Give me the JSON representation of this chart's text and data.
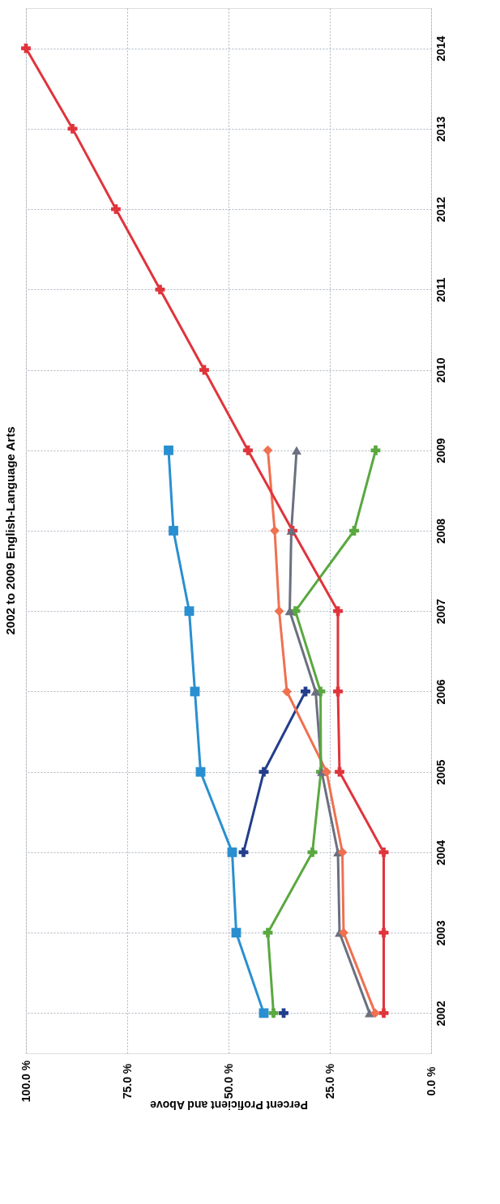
{
  "chart_data": {
    "type": "line",
    "orientation": "horizontal",
    "title": "2002 to 2009 English-Language Arts",
    "xlabel": "Percent Proficient and Above",
    "categories": [
      "2014",
      "2013",
      "2012",
      "2011",
      "2010",
      "2009",
      "2008",
      "2007",
      "2006",
      "2005",
      "2004",
      "2003",
      "2002"
    ],
    "series": [
      {
        "color": "#2a8fd0",
        "marker": "square",
        "values": [
          null,
          null,
          null,
          null,
          null,
          64.8,
          63.6,
          59.7,
          58.3,
          56.9,
          49.1,
          48.1,
          41.3
        ]
      },
      {
        "color": "#233e8b",
        "marker": "cross",
        "values": [
          null,
          null,
          null,
          null,
          null,
          null,
          null,
          null,
          31.0,
          41.3,
          46.3,
          null,
          36.4
        ]
      },
      {
        "color": "#f07050",
        "marker": "diamond",
        "values": [
          null,
          null,
          null,
          null,
          null,
          40.3,
          38.6,
          37.5,
          35.6,
          25.8,
          21.9,
          21.6,
          13.8
        ]
      },
      {
        "color": "#6b7080",
        "marker": "triangle",
        "values": [
          null,
          null,
          null,
          null,
          null,
          33.2,
          34.5,
          34.9,
          28.5,
          27.0,
          23.0,
          22.6,
          15.2
        ]
      },
      {
        "color": "#5aa840",
        "marker": "cross",
        "values": [
          null,
          null,
          null,
          null,
          null,
          13.7,
          19.0,
          33.5,
          27.3,
          27.2,
          29.3,
          40.3,
          38.9
        ]
      },
      {
        "color": "#e0343c",
        "marker": "cross",
        "values": [
          100,
          88.5,
          77.8,
          66.9,
          56.0,
          45.2,
          34.2,
          23.0,
          23.0,
          22.6,
          11.7,
          11.7,
          11.7
        ]
      }
    ],
    "xlim": [
      100,
      0
    ],
    "xticks": [
      {
        "value": 0,
        "label": "0.0 %"
      },
      {
        "value": 25,
        "label": "25.0 %"
      },
      {
        "value": 50,
        "label": "50.0 %"
      },
      {
        "value": 75,
        "label": "75.0 %"
      },
      {
        "value": 100,
        "label": "100.0 %"
      }
    ],
    "grid": true,
    "line_style": "solid"
  }
}
